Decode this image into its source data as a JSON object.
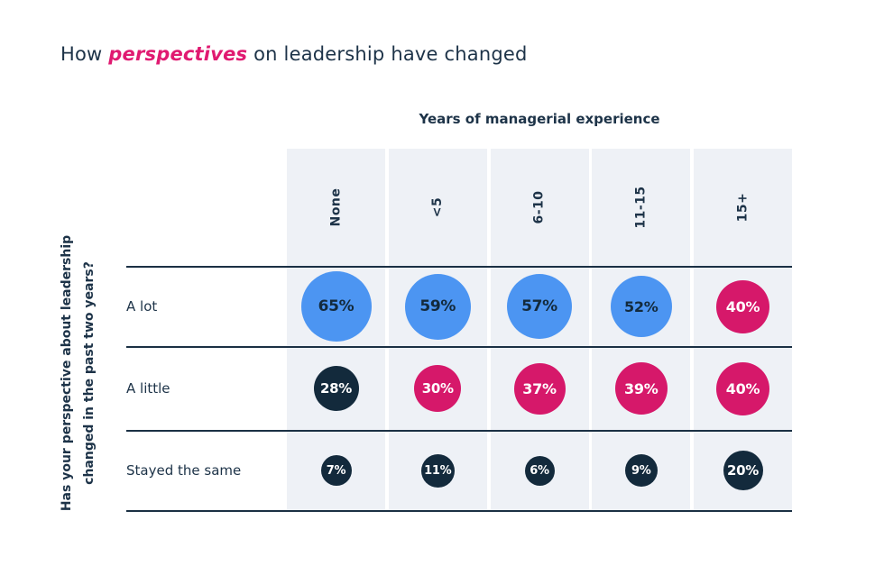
{
  "title": {
    "part1": "How ",
    "accent": "perspectives",
    "part2": " on leadership have changed"
  },
  "chart_data": {
    "type": "heatmap",
    "subtype": "bubble-matrix",
    "title": "How perspectives on leadership have changed",
    "column_group_label": "Years of managerial experience",
    "row_group_label_lines": [
      "Has your perspective about leadership",
      "changed in the past two years?"
    ],
    "columns": [
      "None",
      "<5",
      "6-10",
      "11-15",
      "15+"
    ],
    "rows": [
      "A lot",
      "A little",
      "Stayed the same"
    ],
    "unit": "%",
    "series": [
      {
        "name": "A lot",
        "values": [
          65,
          59,
          57,
          52,
          40
        ]
      },
      {
        "name": "A little",
        "values": [
          28,
          30,
          37,
          39,
          40
        ]
      },
      {
        "name": "Stayed the same",
        "values": [
          7,
          11,
          6,
          9,
          20
        ]
      }
    ],
    "cell_colors": [
      [
        "blue",
        "blue",
        "blue",
        "blue",
        "pink"
      ],
      [
        "dark",
        "pink",
        "pink",
        "pink",
        "pink"
      ],
      [
        "dark",
        "dark",
        "dark",
        "dark",
        "dark"
      ]
    ],
    "legend": "bubble size proportional to percentage",
    "colors": {
      "blue": "#4C95F2",
      "pink": "#D6186A",
      "dark": "#132A3C",
      "band_background": "#EEF1F6",
      "grid_line": "#1B3044",
      "text_dark": "#1D3348",
      "accent_text": "#E01A71",
      "bubble_text_on_blue": "#132A3C",
      "bubble_text_on_dark": "#FFFFFF"
    }
  }
}
